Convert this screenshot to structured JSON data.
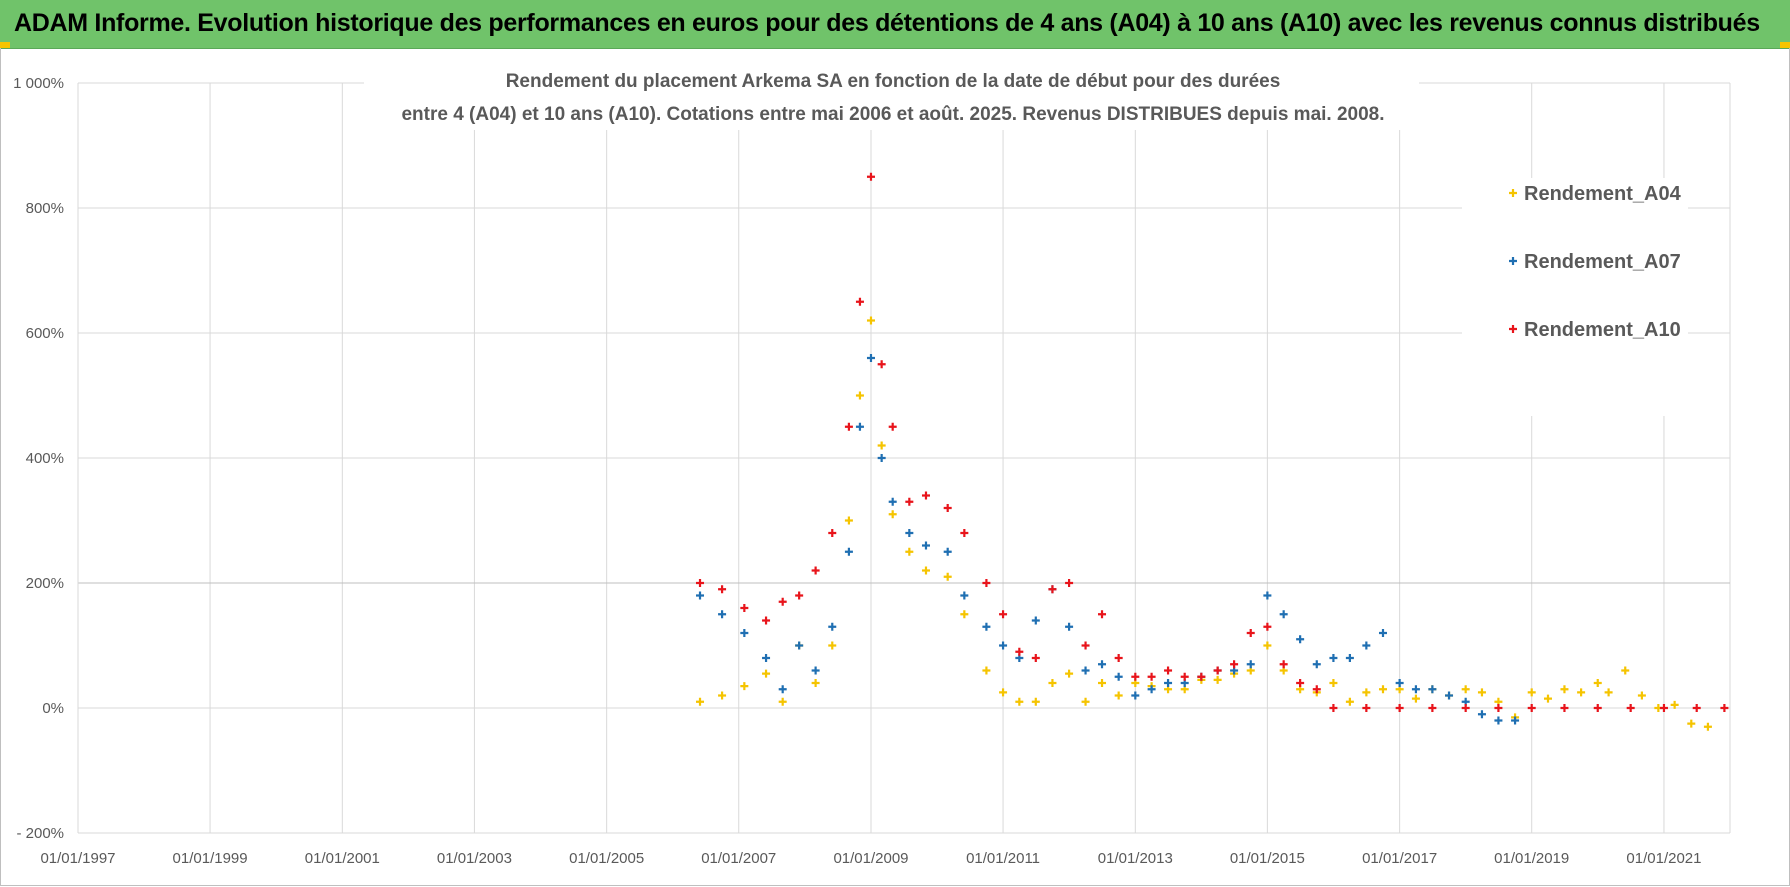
{
  "banner": {
    "text": "ADAM Informe. Evolution historique des performances en euros pour des détentions de 4 ans (A04) à 10 ans (A10) avec les revenus connus distribués"
  },
  "colors": {
    "banner": "#70c36a",
    "A04": "#f5c400",
    "A07": "#1f6fb2",
    "A10": "#e8141b",
    "grid": "#d9d9d9"
  },
  "chart_data": {
    "type": "scatter",
    "title": [
      "Rendement du placement Arkema SA en fonction de la date de début pour des durées",
      "entre 4 (A04) et 10 ans (A10). Cotations entre mai 2006 et août. 2025. Revenus DISTRIBUES depuis mai. 2008."
    ],
    "xlabel": "",
    "ylabel": "",
    "x_tick_labels": [
      "01/01/1997",
      "01/01/1999",
      "01/01/2001",
      "01/01/2003",
      "01/01/2005",
      "01/01/2007",
      "01/01/2009",
      "01/01/2011",
      "01/01/2013",
      "01/01/2015",
      "01/01/2017",
      "01/01/2019",
      "01/01/2021"
    ],
    "xlim": [
      "1997-01-01",
      "2022-01-01"
    ],
    "y_tick_labels": [
      "- 200%",
      "0%",
      "200%",
      "400%",
      "600%",
      "800%",
      "1 000%"
    ],
    "ylim": [
      -200,
      1000
    ],
    "y_unit": "%",
    "grid": true,
    "legend_position": "right",
    "marker": "+",
    "series": [
      {
        "name": "Rendement_A04",
        "x": [
          "2006-06",
          "2006-10",
          "2007-02",
          "2007-06",
          "2007-09",
          "2007-12",
          "2008-03",
          "2008-06",
          "2008-09",
          "2008-11",
          "2009-01",
          "2009-03",
          "2009-05",
          "2009-08",
          "2009-11",
          "2010-03",
          "2010-06",
          "2010-10",
          "2011-01",
          "2011-04",
          "2011-07",
          "2011-10",
          "2012-01",
          "2012-04",
          "2012-07",
          "2012-10",
          "2013-01",
          "2013-04",
          "2013-07",
          "2013-10",
          "2014-01",
          "2014-04",
          "2014-07",
          "2014-10",
          "2015-01",
          "2015-04",
          "2015-07",
          "2015-10",
          "2016-01",
          "2016-04",
          "2016-07",
          "2016-10",
          "2017-01",
          "2017-04",
          "2017-07",
          "2017-10",
          "2018-01",
          "2018-04",
          "2018-07",
          "2018-10",
          "2019-01",
          "2019-04",
          "2019-07",
          "2019-10",
          "2020-01",
          "2020-03",
          "2020-06",
          "2020-09",
          "2020-12",
          "2021-03",
          "2021-06",
          "2021-09"
        ],
        "y": [
          10,
          20,
          35,
          55,
          10,
          100,
          40,
          100,
          300,
          500,
          620,
          420,
          310,
          250,
          220,
          210,
          150,
          60,
          25,
          10,
          10,
          40,
          55,
          10,
          40,
          20,
          40,
          35,
          30,
          30,
          45,
          45,
          55,
          60,
          100,
          60,
          30,
          25,
          40,
          10,
          25,
          30,
          30,
          15,
          30,
          20,
          30,
          25,
          10,
          -15,
          25,
          15,
          30,
          25,
          40,
          25,
          60,
          20,
          0,
          5,
          -25,
          -30
        ]
      },
      {
        "name": "Rendement_A07",
        "x": [
          "2006-06",
          "2006-10",
          "2007-02",
          "2007-06",
          "2007-09",
          "2007-12",
          "2008-03",
          "2008-06",
          "2008-09",
          "2008-11",
          "2009-01",
          "2009-03",
          "2009-05",
          "2009-08",
          "2009-11",
          "2010-03",
          "2010-06",
          "2010-10",
          "2011-01",
          "2011-04",
          "2011-07",
          "2011-10",
          "2012-01",
          "2012-04",
          "2012-07",
          "2012-10",
          "2013-01",
          "2013-04",
          "2013-07",
          "2013-10",
          "2014-01",
          "2014-04",
          "2014-07",
          "2014-10",
          "2015-01",
          "2015-04",
          "2015-07",
          "2015-10",
          "2016-01",
          "2016-04",
          "2016-07",
          "2016-10",
          "2017-01",
          "2017-04",
          "2017-07",
          "2017-10",
          "2018-01",
          "2018-04",
          "2018-07",
          "2018-10"
        ],
        "y": [
          180,
          150,
          120,
          80,
          30,
          100,
          60,
          130,
          250,
          450,
          560,
          400,
          330,
          280,
          260,
          250,
          180,
          130,
          100,
          80,
          140,
          190,
          130,
          60,
          70,
          50,
          20,
          30,
          40,
          40,
          50,
          60,
          60,
          70,
          180,
          150,
          110,
          70,
          80,
          80,
          100,
          120,
          40,
          30,
          30,
          20,
          10,
          -10,
          -20,
          -20
        ]
      },
      {
        "name": "Rendement_A10",
        "x": [
          "2006-06",
          "2006-10",
          "2007-02",
          "2007-06",
          "2007-09",
          "2007-12",
          "2008-03",
          "2008-06",
          "2008-09",
          "2008-11",
          "2009-01",
          "2009-03",
          "2009-05",
          "2009-08",
          "2009-11",
          "2010-03",
          "2010-06",
          "2010-10",
          "2011-01",
          "2011-04",
          "2011-07",
          "2011-10",
          "2012-01",
          "2012-04",
          "2012-07",
          "2012-10",
          "2013-01",
          "2013-04",
          "2013-07",
          "2013-10",
          "2014-01",
          "2014-04",
          "2014-07",
          "2014-10",
          "2015-01",
          "2015-04",
          "2015-07",
          "2015-10",
          "2016-01",
          "2016-07",
          "2017-01",
          "2017-07",
          "2018-01",
          "2018-07",
          "2019-01",
          "2019-07",
          "2020-01",
          "2020-07",
          "2021-01",
          "2021-07",
          "2021-12"
        ],
        "y": [
          200,
          190,
          160,
          140,
          170,
          180,
          220,
          280,
          450,
          650,
          850,
          550,
          450,
          330,
          340,
          320,
          280,
          200,
          150,
          90,
          80,
          190,
          200,
          100,
          150,
          80,
          50,
          50,
          60,
          50,
          50,
          60,
          70,
          120,
          130,
          70,
          40,
          30,
          0,
          0,
          0,
          0,
          0,
          0,
          0,
          0,
          0,
          0,
          0,
          0,
          0
        ]
      }
    ]
  }
}
